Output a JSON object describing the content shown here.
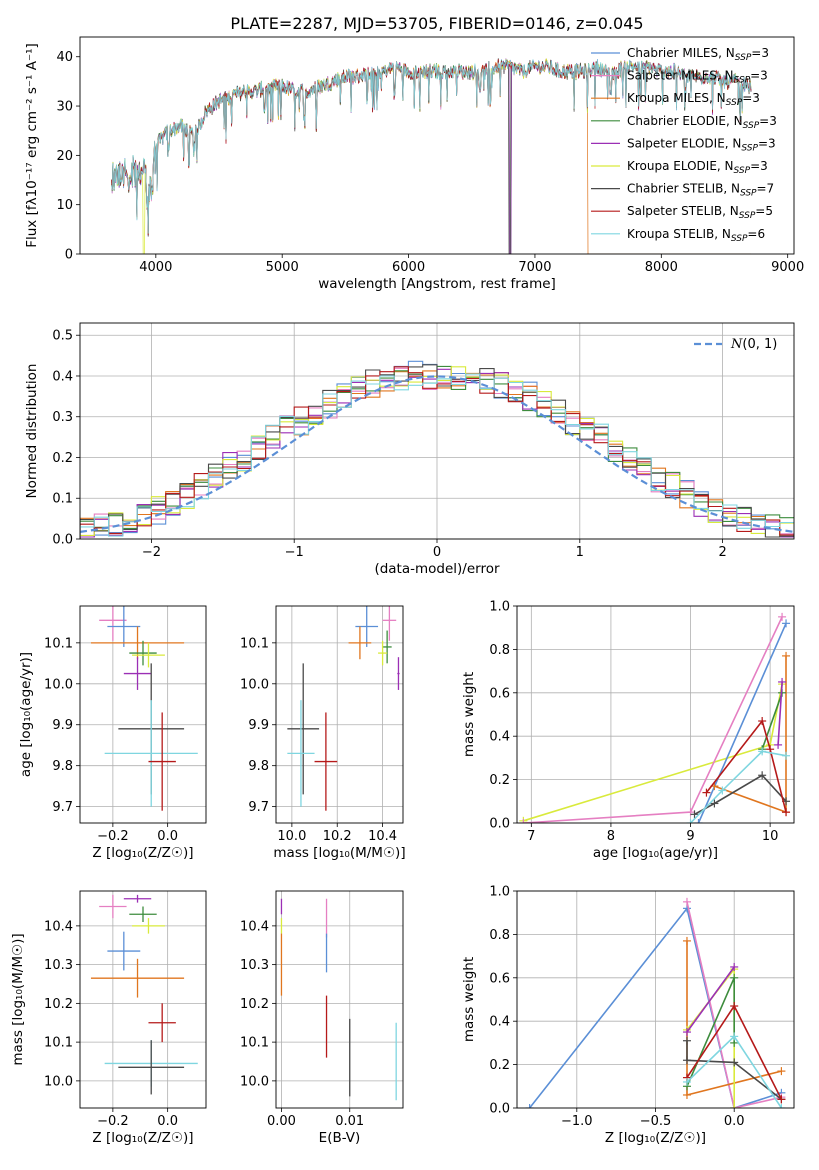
{
  "figure_title": "PLATE=2287, MJD=53705, FIBERID=0146, z=0.045",
  "colors": {
    "chabrier_miles": "#5b8fd6",
    "salpeter_miles": "#e57fc2",
    "kroupa_miles": "#e0761f",
    "chabrier_elodie": "#3d8c3d",
    "salpeter_elodie": "#9b2fb5",
    "kroupa_elodie": "#d9ea3c",
    "chabrier_stelib": "#4a4a4a",
    "salpeter_stelib": "#b51a1a",
    "kroupa_stelib": "#7fd6e0"
  },
  "chart_data": [
    {
      "type": "line",
      "id": "spectrum",
      "title": "PLATE=2287, MJD=53705, FIBERID=0146, z=0.045",
      "xlabel": "wavelength [Angstrom, rest frame]",
      "ylabel": "Flux [fλ10⁻¹⁷ erg cm⁻² s⁻¹ A⁻¹]",
      "xlim": [
        3400,
        9050
      ],
      "ylim": [
        0,
        44
      ],
      "xticks": [
        4000,
        5000,
        6000,
        7000,
        8000,
        9000
      ],
      "yticks": [
        0,
        10,
        20,
        30,
        40
      ],
      "grid": false,
      "legend_position": "right",
      "spectrum_envelope": {
        "x": [
          3650,
          3700,
          3800,
          3900,
          3950,
          4000,
          4100,
          4200,
          4300,
          4400,
          4500,
          4600,
          4700,
          4800,
          4900,
          5000,
          5100,
          5200,
          5300,
          5400,
          5500,
          5600,
          5700,
          5800,
          5900,
          6000,
          6100,
          6200,
          6300,
          6400,
          6500,
          6600,
          6700,
          6800,
          6900,
          7000,
          7100,
          7200,
          7300,
          7400,
          7500,
          7600,
          7700,
          7800,
          7900,
          8000,
          8100,
          8200,
          8300,
          8400,
          8500,
          8600,
          8700
        ],
        "y": [
          15,
          17,
          16,
          16,
          13,
          22,
          25,
          26,
          24,
          29,
          31,
          32,
          33,
          33,
          34,
          34,
          33,
          33,
          34,
          35,
          36,
          36,
          37,
          37,
          38,
          37,
          37,
          37,
          37,
          37,
          37,
          37,
          38,
          38,
          37,
          38,
          38,
          37,
          37,
          37,
          38,
          36,
          38,
          38,
          38,
          37,
          37,
          36,
          36,
          36,
          35,
          35,
          34
        ]
      },
      "series": [
        {
          "name": "Chabrier MILES, N$_{SSP}$=3",
          "label_main": "Chabrier MILES, N",
          "label_sub": "SSP",
          "label_tail": "=3",
          "color_key": "chabrier_miles"
        },
        {
          "name": "Salpeter MILES, N$_{SSP}$=3",
          "label_main": "Salpeter MILES, N",
          "label_sub": "SSP",
          "label_tail": "=3",
          "color_key": "salpeter_miles"
        },
        {
          "name": "Kroupa MILES, N$_{SSP}$=3",
          "label_main": "Kroupa MILES, N",
          "label_sub": "SSP",
          "label_tail": "=3",
          "color_key": "kroupa_miles",
          "dropout": [
            7420,
            9000
          ]
        },
        {
          "name": "Chabrier ELODIE, N$_{SSP}$=3",
          "label_main": "Chabrier ELODIE, N",
          "label_sub": "SSP",
          "label_tail": "=3",
          "color_key": "chabrier_elodie",
          "dropout": [
            6800,
            6810
          ]
        },
        {
          "name": "Salpeter ELODIE, N$_{SSP}$=3",
          "label_main": "Salpeter ELODIE, N",
          "label_sub": "SSP",
          "label_tail": "=3",
          "color_key": "salpeter_elodie",
          "dropout": [
            6800,
            6810
          ]
        },
        {
          "name": "Kroupa ELODIE, N$_{SSP}$=3",
          "label_main": "Kroupa ELODIE, N",
          "label_sub": "SSP",
          "label_tail": "=3",
          "color_key": "kroupa_elodie",
          "dropout": [
            3900,
            3910
          ]
        },
        {
          "name": "Chabrier STELIB, N$_{SSP}$=7",
          "label_main": "Chabrier STELIB, N",
          "label_sub": "SSP",
          "label_tail": "=7",
          "color_key": "chabrier_stelib",
          "dropout": [
            6795,
            6805
          ]
        },
        {
          "name": "Salpeter STELIB, N$_{SSP}$=5",
          "label_main": "Salpeter STELIB, N",
          "label_sub": "SSP",
          "label_tail": "=5",
          "color_key": "salpeter_stelib"
        },
        {
          "name": "Kroupa STELIB, N$_{SSP}$=6",
          "label_main": "Kroupa STELIB, N",
          "label_sub": "SSP",
          "label_tail": "=6",
          "color_key": "kroupa_stelib"
        }
      ]
    },
    {
      "type": "line",
      "id": "residuals",
      "xlabel": "(data-model)/error",
      "ylabel": "Normed distribution",
      "xlim": [
        -2.5,
        2.5
      ],
      "ylim": [
        0,
        0.53
      ],
      "xticks": [
        -2,
        -1,
        0,
        1,
        2
      ],
      "yticks": [
        0.0,
        0.1,
        0.2,
        0.3,
        0.4,
        0.5
      ],
      "grid": true,
      "legend_position": "top-right",
      "reference_curve": {
        "name": "N(0,1)",
        "mu": 0,
        "sigma": 1,
        "label_script": "N",
        "label_args": "(0, 1)"
      },
      "histograms": {
        "bin_edges_start": -2.5,
        "bin_width": 0.1,
        "bins": 50,
        "base_values": [
          0.02,
          0.03,
          0.04,
          0.05,
          0.06,
          0.07,
          0.09,
          0.11,
          0.13,
          0.15,
          0.18,
          0.2,
          0.22,
          0.25,
          0.27,
          0.29,
          0.31,
          0.33,
          0.35,
          0.37,
          0.38,
          0.39,
          0.4,
          0.41,
          0.4,
          0.4,
          0.4,
          0.39,
          0.39,
          0.38,
          0.36,
          0.35,
          0.33,
          0.31,
          0.29,
          0.27,
          0.25,
          0.22,
          0.2,
          0.18,
          0.15,
          0.13,
          0.11,
          0.09,
          0.07,
          0.06,
          0.05,
          0.04,
          0.03,
          0.02
        ],
        "series_color_keys": [
          "chabrier_miles",
          "salpeter_miles",
          "kroupa_miles",
          "chabrier_elodie",
          "salpeter_elodie",
          "kroupa_elodie",
          "chabrier_stelib",
          "salpeter_stelib",
          "kroupa_stelib"
        ]
      }
    },
    {
      "type": "scatter",
      "id": "age_vs_Z",
      "xlabel": "Z [log₁₀(Z/Z☉)]",
      "ylabel": "age  [log₁₀(age/yr)]",
      "xlim": [
        -0.32,
        0.14
      ],
      "ylim": [
        9.66,
        10.19
      ],
      "xticks": [
        -0.2,
        0.0
      ],
      "yticks": [
        9.7,
        9.8,
        9.9,
        10.0,
        10.1
      ],
      "grid": true,
      "points": [
        {
          "color_key": "salpeter_miles",
          "x": -0.2,
          "xerr": 0.05,
          "y": 10.155,
          "yerr": 0.05
        },
        {
          "color_key": "chabrier_miles",
          "x": -0.16,
          "xerr": 0.06,
          "y": 10.14,
          "yerr": 0.05
        },
        {
          "color_key": "kroupa_miles",
          "x": -0.11,
          "xerr": 0.17,
          "y": 10.1,
          "yerr": 0.04
        },
        {
          "color_key": "chabrier_elodie",
          "x": -0.09,
          "xerr": 0.05,
          "y": 10.075,
          "yerr": 0.03
        },
        {
          "color_key": "kroupa_elodie",
          "x": -0.07,
          "xerr": 0.06,
          "y": 10.07,
          "yerr": 0.03
        },
        {
          "color_key": "salpeter_elodie",
          "x": -0.11,
          "xerr": 0.05,
          "y": 10.025,
          "yerr": 0.04
        },
        {
          "color_key": "chabrier_stelib",
          "x": -0.06,
          "xerr": 0.12,
          "y": 9.89,
          "yerr": 0.16
        },
        {
          "color_key": "kroupa_stelib",
          "x": -0.06,
          "xerr": 0.17,
          "y": 9.83,
          "yerr": 0.13
        },
        {
          "color_key": "salpeter_stelib",
          "x": -0.02,
          "xerr": 0.05,
          "y": 9.81,
          "yerr": 0.12
        }
      ]
    },
    {
      "type": "scatter",
      "id": "age_vs_mass",
      "xlabel": "mass [log₁₀(M/M☉)]",
      "ylabel": "",
      "xlim": [
        9.93,
        10.49
      ],
      "ylim": [
        9.66,
        10.19
      ],
      "xticks": [
        10.0,
        10.2,
        10.4
      ],
      "yticks": [
        9.7,
        9.8,
        9.9,
        10.0,
        10.1
      ],
      "grid": true,
      "points": [
        {
          "color_key": "salpeter_miles",
          "x": 10.43,
          "xerr": 0.03,
          "y": 10.155,
          "yerr": 0.05
        },
        {
          "color_key": "chabrier_miles",
          "x": 10.33,
          "xerr": 0.05,
          "y": 10.14,
          "yerr": 0.05
        },
        {
          "color_key": "kroupa_miles",
          "x": 10.3,
          "xerr": 0.05,
          "y": 10.1,
          "yerr": 0.04
        },
        {
          "color_key": "chabrier_elodie",
          "x": 10.42,
          "xerr": 0.02,
          "y": 10.09,
          "yerr": 0.04
        },
        {
          "color_key": "kroupa_elodie",
          "x": 10.4,
          "xerr": 0.02,
          "y": 10.075,
          "yerr": 0.03
        },
        {
          "color_key": "salpeter_elodie",
          "x": 10.47,
          "xerr": 0.005,
          "y": 10.025,
          "yerr": 0.04
        },
        {
          "color_key": "chabrier_stelib",
          "x": 10.05,
          "xerr": 0.07,
          "y": 9.89,
          "yerr": 0.16
        },
        {
          "color_key": "kroupa_stelib",
          "x": 10.04,
          "xerr": 0.06,
          "y": 9.83,
          "yerr": 0.13
        },
        {
          "color_key": "salpeter_stelib",
          "x": 10.15,
          "xerr": 0.05,
          "y": 9.81,
          "yerr": 0.12
        }
      ]
    },
    {
      "type": "line",
      "id": "massweight_vs_age",
      "xlabel": "age  [log₁₀(age/yr)]",
      "ylabel": "mass weight",
      "xlim": [
        6.82,
        10.3
      ],
      "ylim": [
        0,
        1.0
      ],
      "xticks": [
        7,
        8,
        9,
        10
      ],
      "yticks": [
        0.0,
        0.2,
        0.4,
        0.6,
        0.8,
        1.0
      ],
      "grid": true,
      "series": [
        {
          "color_key": "kroupa_elodie",
          "x": [
            6.9,
            10.0,
            10.15
          ],
          "y": [
            0.01,
            0.36,
            0.64
          ]
        },
        {
          "color_key": "salpeter_miles",
          "x": [
            6.9,
            9.0,
            10.15
          ],
          "y": [
            0.0,
            0.05,
            0.95
          ]
        },
        {
          "color_key": "chabrier_miles",
          "x": [
            9.1,
            10.2
          ],
          "y": [
            0.0,
            0.92
          ]
        },
        {
          "color_key": "kroupa_miles",
          "x": [
            9.3,
            10.2,
            10.2
          ],
          "y": [
            0.17,
            0.05,
            0.77
          ]
        },
        {
          "color_key": "chabrier_elodie",
          "x": [
            9.9,
            10.15
          ],
          "y": [
            0.34,
            0.6
          ]
        },
        {
          "color_key": "salpeter_elodie",
          "x": [
            10.1,
            10.15
          ],
          "y": [
            0.36,
            0.65
          ]
        },
        {
          "color_key": "chabrier_stelib",
          "x": [
            9.05,
            9.3,
            9.9,
            10.2
          ],
          "y": [
            0.04,
            0.09,
            0.22,
            0.1
          ]
        },
        {
          "color_key": "salpeter_stelib",
          "x": [
            9.2,
            9.9,
            10.0,
            10.2
          ],
          "y": [
            0.14,
            0.47,
            0.34,
            0.05
          ]
        },
        {
          "color_key": "kroupa_stelib",
          "x": [
            9.0,
            9.4,
            9.9,
            10.2
          ],
          "y": [
            0.0,
            0.15,
            0.33,
            0.31
          ]
        }
      ]
    },
    {
      "type": "scatter",
      "id": "mass_vs_Z",
      "xlabel": "Z [log₁₀(Z/Z☉)]",
      "ylabel": "mass [log₁₀(M/M☉)]",
      "xlim": [
        -0.32,
        0.14
      ],
      "ylim": [
        9.93,
        10.49
      ],
      "xticks": [
        -0.2,
        0.0
      ],
      "yticks": [
        10.0,
        10.1,
        10.2,
        10.3,
        10.4
      ],
      "grid": true,
      "points": [
        {
          "color_key": "salpeter_elodie",
          "x": -0.11,
          "xerr": 0.05,
          "y": 10.47,
          "yerr": 0.01
        },
        {
          "color_key": "salpeter_miles",
          "x": -0.2,
          "xerr": 0.05,
          "y": 10.45,
          "yerr": 0.03
        },
        {
          "color_key": "chabrier_elodie",
          "x": -0.09,
          "xerr": 0.05,
          "y": 10.43,
          "yerr": 0.02
        },
        {
          "color_key": "kroupa_elodie",
          "x": -0.07,
          "xerr": 0.06,
          "y": 10.4,
          "yerr": 0.02
        },
        {
          "color_key": "chabrier_miles",
          "x": -0.16,
          "xerr": 0.06,
          "y": 10.335,
          "yerr": 0.05
        },
        {
          "color_key": "kroupa_miles",
          "x": -0.11,
          "xerr": 0.17,
          "y": 10.265,
          "yerr": 0.05
        },
        {
          "color_key": "salpeter_stelib",
          "x": -0.02,
          "xerr": 0.05,
          "y": 10.15,
          "yerr": 0.05
        },
        {
          "color_key": "kroupa_stelib",
          "x": -0.06,
          "xerr": 0.17,
          "y": 10.045,
          "yerr": 0.06
        },
        {
          "color_key": "chabrier_stelib",
          "x": -0.06,
          "xerr": 0.12,
          "y": 10.035,
          "yerr": 0.07
        }
      ]
    },
    {
      "type": "scatter",
      "id": "mass_vs_ebv",
      "xlabel": "E(B-V)",
      "ylabel": "",
      "xlim": [
        -0.0008,
        0.0178
      ],
      "ylim": [
        9.93,
        10.49
      ],
      "xticks": [
        0.0,
        0.01
      ],
      "yticks": [
        10.0,
        10.1,
        10.2,
        10.3,
        10.4
      ],
      "grid": true,
      "points": [
        {
          "color_key": "salpeter_elodie",
          "x": 0.0,
          "xerr": 0.0,
          "y": 10.45,
          "yerr": 0.02
        },
        {
          "color_key": "kroupa_elodie",
          "x": 0.0,
          "xerr": 0.0,
          "y": 10.4,
          "yerr": 0.02
        },
        {
          "color_key": "kroupa_miles",
          "x": 0.0,
          "xerr": 0.0,
          "y": 10.3,
          "yerr": 0.08
        },
        {
          "color_key": "salpeter_miles",
          "x": 0.0066,
          "xerr": 0.0,
          "y": 10.42,
          "yerr": 0.05
        },
        {
          "color_key": "chabrier_miles",
          "x": 0.0066,
          "xerr": 0.0,
          "y": 10.33,
          "yerr": 0.05
        },
        {
          "color_key": "salpeter_stelib",
          "x": 0.0066,
          "xerr": 0.0,
          "y": 10.14,
          "yerr": 0.08
        },
        {
          "color_key": "chabrier_stelib",
          "x": 0.01,
          "xerr": 0.0,
          "y": 10.06,
          "yerr": 0.1
        },
        {
          "color_key": "kroupa_stelib",
          "x": 0.0168,
          "xerr": 0.0,
          "y": 10.05,
          "yerr": 0.1
        }
      ]
    },
    {
      "type": "line",
      "id": "massweight_vs_Z",
      "xlabel": "Z [log₁₀(Z/Z☉)]",
      "ylabel": "mass weight",
      "xlim": [
        -1.38,
        0.38
      ],
      "ylim": [
        0,
        1.0
      ],
      "xticks": [
        -1.0,
        -0.5,
        0.0
      ],
      "yticks": [
        0.0,
        0.2,
        0.4,
        0.6,
        0.8,
        1.0
      ],
      "grid": true,
      "series": [
        {
          "color_key": "chabrier_miles",
          "x": [
            -1.3,
            -0.3,
            0.0,
            0.3
          ],
          "y": [
            0.0,
            0.92,
            0.0,
            0.07
          ]
        },
        {
          "color_key": "salpeter_miles",
          "x": [
            -0.3,
            0.0,
            0.3
          ],
          "y": [
            0.95,
            0.0,
            0.05
          ]
        },
        {
          "color_key": "kroupa_miles",
          "x": [
            -0.3,
            -0.3,
            0.3
          ],
          "y": [
            0.77,
            0.06,
            0.17
          ]
        },
        {
          "color_key": "kroupa_elodie",
          "x": [
            -0.3,
            0.0,
            0.0
          ],
          "y": [
            0.36,
            0.64,
            0.0
          ]
        },
        {
          "color_key": "chabrier_elodie",
          "x": [
            -0.3,
            0.0,
            0.0
          ],
          "y": [
            0.1,
            0.6,
            0.3
          ]
        },
        {
          "color_key": "salpeter_elodie",
          "x": [
            -0.3,
            0.0
          ],
          "y": [
            0.35,
            0.65
          ]
        },
        {
          "color_key": "chabrier_stelib",
          "x": [
            -0.3,
            -0.3,
            0.0,
            0.3
          ],
          "y": [
            0.31,
            0.22,
            0.21,
            0.04
          ]
        },
        {
          "color_key": "salpeter_stelib",
          "x": [
            -0.3,
            0.0,
            0.3
          ],
          "y": [
            0.14,
            0.47,
            0.04
          ]
        },
        {
          "color_key": "kroupa_stelib",
          "x": [
            -0.3,
            0.0,
            0.3
          ],
          "y": [
            0.12,
            0.33,
            0.0
          ]
        }
      ]
    }
  ]
}
